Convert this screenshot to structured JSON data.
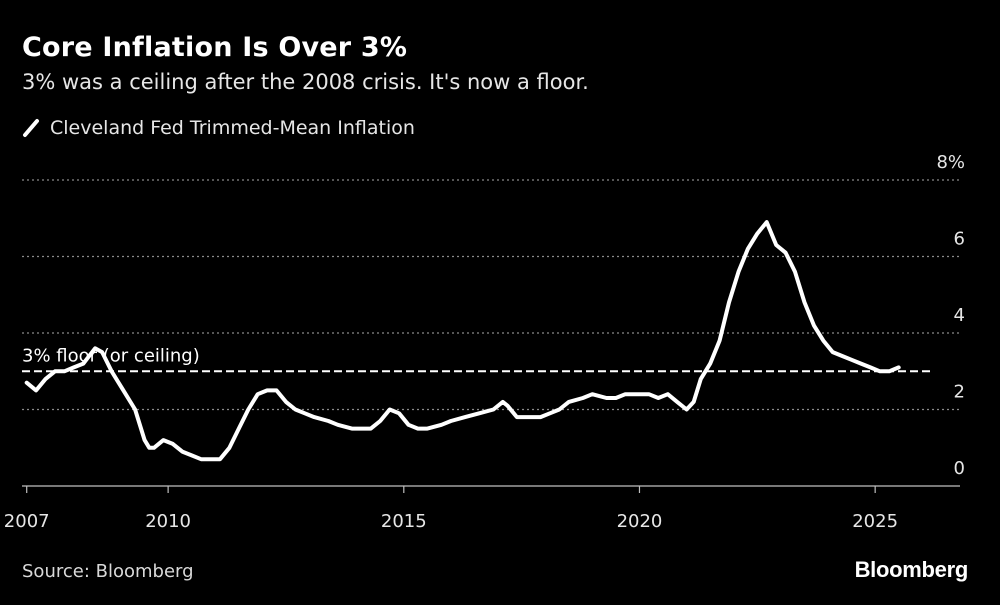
{
  "chart_data": {
    "type": "line",
    "title": "Core Inflation Is Over 3%",
    "subtitle": "3% was a ceiling after the 2008 crisis. It's now a floor.",
    "source": "Source: Bloomberg",
    "brand": "Bloomberg",
    "xlim": [
      2006.9,
      2026.8
    ],
    "ylim": [
      0,
      8
    ],
    "x_ticks": [
      2007,
      2010,
      2015,
      2020,
      2025
    ],
    "y_ticks": [
      0,
      2,
      4,
      6,
      8
    ],
    "y_tick_labels": [
      "0",
      "2",
      "4",
      "6",
      "8%"
    ],
    "grid": true,
    "legend_position": "top-left",
    "annotation": {
      "label": "3% floor (or ceiling)",
      "y": 3
    },
    "series": [
      {
        "name": "Cleveland Fed Trimmed-Mean Inflation",
        "color": "#ffffff",
        "points": [
          [
            2007.0,
            2.7
          ],
          [
            2007.2,
            2.5
          ],
          [
            2007.4,
            2.8
          ],
          [
            2007.6,
            3.0
          ],
          [
            2007.8,
            3.0
          ],
          [
            2008.0,
            3.1
          ],
          [
            2008.2,
            3.2
          ],
          [
            2008.45,
            3.6
          ],
          [
            2008.6,
            3.5
          ],
          [
            2008.8,
            3.0
          ],
          [
            2009.0,
            2.6
          ],
          [
            2009.3,
            2.0
          ],
          [
            2009.5,
            1.2
          ],
          [
            2009.6,
            1.0
          ],
          [
            2009.7,
            1.0
          ],
          [
            2009.9,
            1.2
          ],
          [
            2010.1,
            1.1
          ],
          [
            2010.3,
            0.9
          ],
          [
            2010.5,
            0.8
          ],
          [
            2010.7,
            0.7
          ],
          [
            2010.9,
            0.7
          ],
          [
            2011.1,
            0.7
          ],
          [
            2011.3,
            1.0
          ],
          [
            2011.5,
            1.5
          ],
          [
            2011.7,
            2.0
          ],
          [
            2011.9,
            2.4
          ],
          [
            2012.1,
            2.5
          ],
          [
            2012.3,
            2.5
          ],
          [
            2012.5,
            2.2
          ],
          [
            2012.7,
            2.0
          ],
          [
            2012.9,
            1.9
          ],
          [
            2013.1,
            1.8
          ],
          [
            2013.4,
            1.7
          ],
          [
            2013.6,
            1.6
          ],
          [
            2013.9,
            1.5
          ],
          [
            2014.1,
            1.5
          ],
          [
            2014.3,
            1.5
          ],
          [
            2014.5,
            1.7
          ],
          [
            2014.7,
            2.0
          ],
          [
            2014.9,
            1.9
          ],
          [
            2015.1,
            1.6
          ],
          [
            2015.3,
            1.5
          ],
          [
            2015.5,
            1.5
          ],
          [
            2015.8,
            1.6
          ],
          [
            2016.0,
            1.7
          ],
          [
            2016.3,
            1.8
          ],
          [
            2016.6,
            1.9
          ],
          [
            2016.9,
            2.0
          ],
          [
            2017.1,
            2.2
          ],
          [
            2017.2,
            2.1
          ],
          [
            2017.4,
            1.8
          ],
          [
            2017.6,
            1.8
          ],
          [
            2017.9,
            1.8
          ],
          [
            2018.1,
            1.9
          ],
          [
            2018.3,
            2.0
          ],
          [
            2018.5,
            2.2
          ],
          [
            2018.8,
            2.3
          ],
          [
            2019.0,
            2.4
          ],
          [
            2019.3,
            2.3
          ],
          [
            2019.5,
            2.3
          ],
          [
            2019.7,
            2.4
          ],
          [
            2020.0,
            2.4
          ],
          [
            2020.2,
            2.4
          ],
          [
            2020.4,
            2.3
          ],
          [
            2020.6,
            2.4
          ],
          [
            2020.8,
            2.2
          ],
          [
            2021.0,
            2.0
          ],
          [
            2021.15,
            2.2
          ],
          [
            2021.3,
            2.8
          ],
          [
            2021.5,
            3.2
          ],
          [
            2021.7,
            3.8
          ],
          [
            2021.9,
            4.8
          ],
          [
            2022.1,
            5.6
          ],
          [
            2022.3,
            6.2
          ],
          [
            2022.5,
            6.6
          ],
          [
            2022.7,
            6.9
          ],
          [
            2022.9,
            6.3
          ],
          [
            2023.1,
            6.1
          ],
          [
            2023.3,
            5.6
          ],
          [
            2023.5,
            4.8
          ],
          [
            2023.7,
            4.2
          ],
          [
            2023.9,
            3.8
          ],
          [
            2024.1,
            3.5
          ],
          [
            2024.3,
            3.4
          ],
          [
            2024.5,
            3.3
          ],
          [
            2024.7,
            3.2
          ],
          [
            2024.9,
            3.1
          ],
          [
            2025.1,
            3.0
          ],
          [
            2025.3,
            3.0
          ],
          [
            2025.5,
            3.1
          ]
        ]
      }
    ]
  }
}
